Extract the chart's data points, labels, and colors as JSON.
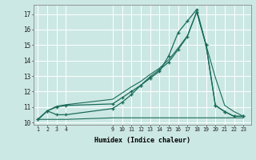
{
  "title": "",
  "xlabel": "Humidex (Indice chaleur)",
  "bg_color": "#cce8e4",
  "grid_color": "#ffffff",
  "line_color": "#1a6b5a",
  "xticks": [
    1,
    2,
    3,
    4,
    9,
    10,
    11,
    12,
    13,
    14,
    15,
    16,
    17,
    18,
    19,
    20,
    21,
    22,
    23
  ],
  "yticks": [
    10,
    11,
    12,
    13,
    14,
    15,
    16,
    17
  ],
  "xlim": [
    0.5,
    23.8
  ],
  "ylim": [
    9.85,
    17.6
  ],
  "line1_x": [
    1,
    2,
    3,
    4,
    9,
    10,
    11,
    12,
    13,
    14,
    15,
    16,
    17,
    18,
    19,
    20,
    21,
    22,
    23
  ],
  "line1_y": [
    10.2,
    10.75,
    10.5,
    10.5,
    10.9,
    11.3,
    11.8,
    12.4,
    12.85,
    13.3,
    14.3,
    15.8,
    16.55,
    17.3,
    15.0,
    11.1,
    10.7,
    10.4,
    10.4
  ],
  "line2_x": [
    1,
    2,
    3,
    4,
    9,
    10,
    11,
    12,
    13,
    14,
    15,
    16,
    17,
    18,
    19,
    20,
    21,
    22,
    23
  ],
  "line2_y": [
    10.2,
    10.75,
    11.0,
    11.1,
    11.2,
    11.6,
    12.0,
    12.4,
    12.95,
    13.4,
    13.9,
    14.7,
    15.55,
    17.15,
    15.0,
    11.1,
    10.7,
    10.4,
    10.4
  ],
  "line3_x": [
    1,
    2,
    3,
    4,
    9,
    10,
    11,
    12,
    13,
    14,
    15,
    16,
    17,
    18,
    19,
    20,
    21,
    22,
    23
  ],
  "line3_y": [
    10.2,
    10.75,
    11.05,
    11.15,
    11.5,
    11.9,
    12.3,
    12.65,
    13.1,
    13.5,
    14.05,
    14.8,
    15.6,
    17.15,
    15.0,
    12.9,
    11.1,
    10.7,
    10.4
  ],
  "line4_x": [
    1,
    2,
    3,
    4,
    9,
    10,
    11,
    12,
    13,
    14,
    15,
    16,
    17,
    18,
    19,
    20,
    21,
    22,
    23
  ],
  "line4_y": [
    10.2,
    10.2,
    10.2,
    10.2,
    10.3,
    10.3,
    10.3,
    10.3,
    10.3,
    10.3,
    10.3,
    10.3,
    10.3,
    10.3,
    10.3,
    10.3,
    10.3,
    10.3,
    10.3
  ]
}
